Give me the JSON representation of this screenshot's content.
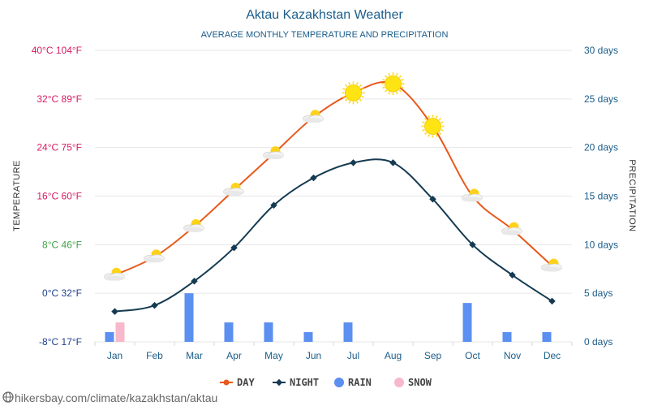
{
  "chart_data": {
    "type": "line",
    "title": "Aktau Kazakhstan Weather",
    "subtitle": "AVERAGE MONTHLY TEMPERATURE AND PRECIPITATION",
    "ylabel_left": "TEMPERATURE",
    "ylabel_right": "PRECIPITATION",
    "categories": [
      "Jan",
      "Feb",
      "Mar",
      "Apr",
      "May",
      "Jun",
      "Jul",
      "Aug",
      "Sep",
      "Oct",
      "Nov",
      "Dec"
    ],
    "left_axis": {
      "ylim": [
        -8,
        40
      ],
      "ticks": [
        {
          "value": 40,
          "label": "40°C 104°F",
          "color": "#d81b60"
        },
        {
          "value": 32,
          "label": "32°C 89°F",
          "color": "#d81b60"
        },
        {
          "value": 24,
          "label": "24°C 75°F",
          "color": "#d81b60"
        },
        {
          "value": 16,
          "label": "16°C 60°F",
          "color": "#d81b60"
        },
        {
          "value": 8,
          "label": "8°C 46°F",
          "color": "#43a047"
        },
        {
          "value": 0,
          "label": "0°C 32°F",
          "color": "#1e3f8f"
        },
        {
          "value": -8,
          "label": "-8°C 17°F",
          "color": "#1e3f8f"
        }
      ]
    },
    "right_axis": {
      "ylim": [
        0,
        30
      ],
      "ticks": [
        {
          "value": 30,
          "label": "30 days"
        },
        {
          "value": 25,
          "label": "25 days"
        },
        {
          "value": 20,
          "label": "20 days"
        },
        {
          "value": 15,
          "label": "15 days"
        },
        {
          "value": 10,
          "label": "10 days"
        },
        {
          "value": 5,
          "label": "5 days"
        },
        {
          "value": 0,
          "label": "0 days"
        }
      ]
    },
    "series": [
      {
        "name": "DAY",
        "color": "#e8591a",
        "axis": "left",
        "values": [
          3,
          6,
          11,
          17,
          23,
          29,
          33,
          34.5,
          27.5,
          16,
          10.5,
          4.5
        ]
      },
      {
        "name": "NIGHT",
        "color": "#153a52",
        "axis": "left",
        "values": [
          -3,
          -2,
          2,
          7.5,
          14.5,
          19,
          21.5,
          21.5,
          15.5,
          8,
          3,
          -1.3
        ]
      },
      {
        "name": "RAIN",
        "color": "#5b8ff0",
        "axis": "right",
        "type": "bar",
        "values": [
          1,
          0,
          5,
          2,
          2,
          1,
          2,
          0,
          0,
          4,
          1,
          1
        ]
      },
      {
        "name": "SNOW",
        "color": "#f7b8cb",
        "axis": "right",
        "type": "bar",
        "values": [
          2,
          0,
          0,
          0,
          0,
          0,
          0,
          0,
          0,
          0,
          0,
          0
        ]
      }
    ],
    "weather_icons": [
      "partly-cloudy-icon",
      "partly-cloudy-icon",
      "partly-cloudy-icon",
      "partly-cloudy-icon",
      "partly-cloudy-icon",
      "partly-cloudy-icon",
      "sun-icon",
      "sun-icon",
      "sun-icon",
      "partly-cloudy-icon",
      "partly-cloudy-icon",
      "partly-cloudy-icon"
    ],
    "legend_position": "bottom"
  },
  "source_text": "hikersbay.com/climate/kazakhstan/aktau"
}
